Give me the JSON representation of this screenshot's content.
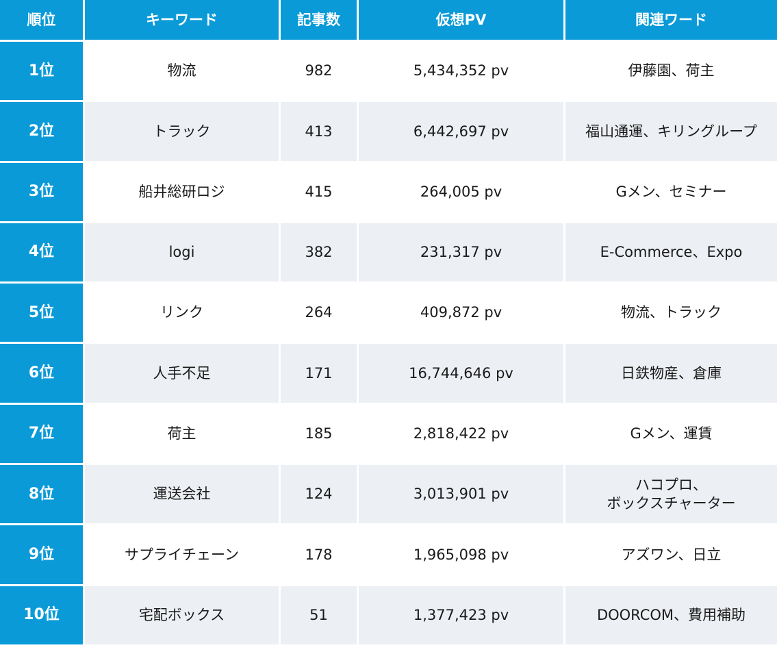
{
  "header": {
    "rank": "順位",
    "keyword": "キーワード",
    "articles": "記事数",
    "pv": "仮想PV",
    "related": "関連ワード"
  },
  "rows": [
    {
      "rank": "1位",
      "keyword": "物流",
      "articles": "982",
      "pv": "5,434,352 pv",
      "related": [
        "伊藤園、荷主"
      ]
    },
    {
      "rank": "2位",
      "keyword": "トラック",
      "articles": "413",
      "pv": "6,442,697 pv",
      "related": [
        "福山通運、キリングループ"
      ]
    },
    {
      "rank": "3位",
      "keyword": "船井総研ロジ",
      "articles": "415",
      "pv": "264,005 pv",
      "related": [
        "Gメン、セミナー"
      ]
    },
    {
      "rank": "4位",
      "keyword": "logi",
      "articles": "382",
      "pv": "231,317 pv",
      "related": [
        "E-Commerce、Expo"
      ]
    },
    {
      "rank": "5位",
      "keyword": "リンク",
      "articles": "264",
      "pv": "409,872 pv",
      "related": [
        "物流、トラック"
      ]
    },
    {
      "rank": "6位",
      "keyword": "人手不足",
      "articles": "171",
      "pv": "16,744,646 pv",
      "related": [
        "日鉄物産、倉庫"
      ]
    },
    {
      "rank": "7位",
      "keyword": "荷主",
      "articles": "185",
      "pv": "2,818,422 pv",
      "related": [
        "Gメン、運賃"
      ]
    },
    {
      "rank": "8位",
      "keyword": "運送会社",
      "articles": "124",
      "pv": "3,013,901 pv",
      "related": [
        "ハコプロ、",
        "ボックスチャーター"
      ]
    },
    {
      "rank": "9位",
      "keyword": "サプライチェーン",
      "articles": "178",
      "pv": "1,965,098 pv",
      "related": [
        "アズワン、日立"
      ]
    },
    {
      "rank": "10位",
      "keyword": "宅配ボックス",
      "articles": "51",
      "pv": "1,377,423 pv",
      "related": [
        "DOORCOM、費用補助"
      ]
    }
  ],
  "colors": {
    "accent": "#0a9ad8",
    "row_alt": "#eceff3",
    "row_base": "#ffffff"
  }
}
